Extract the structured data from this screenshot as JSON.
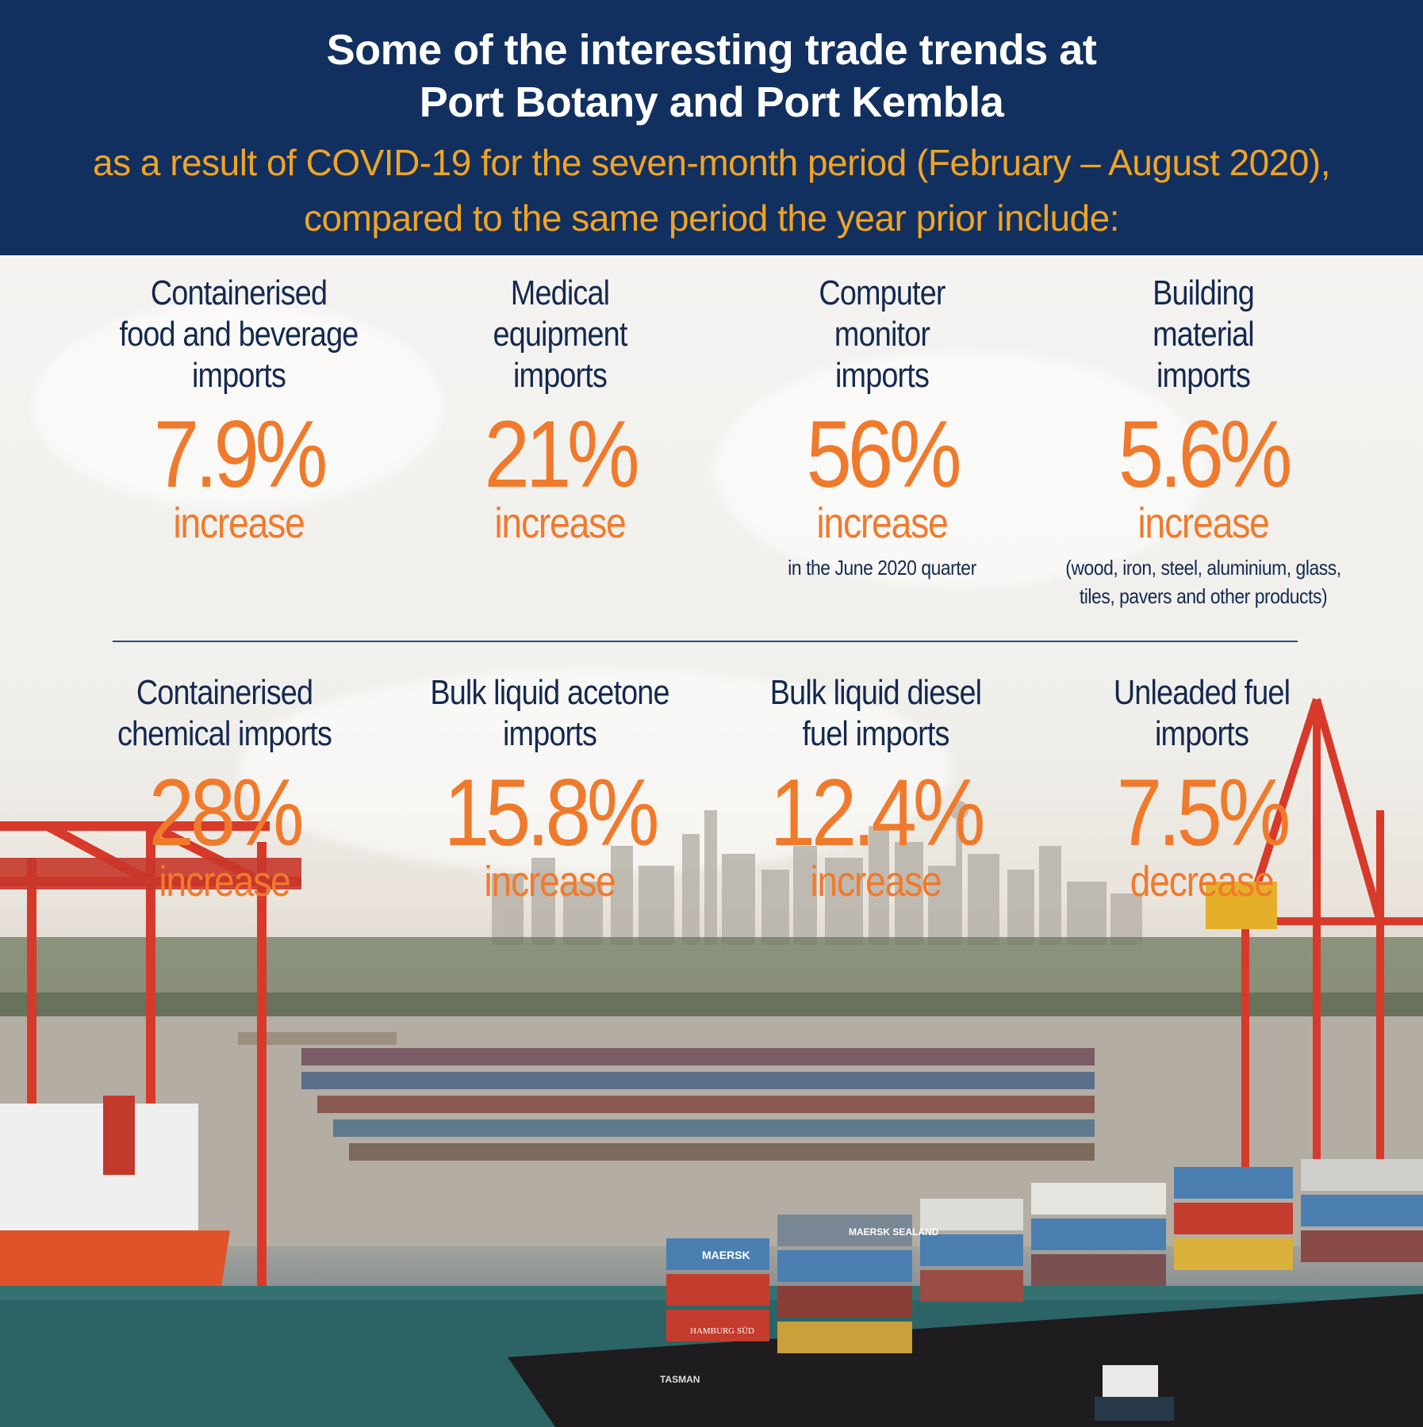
{
  "header": {
    "title_line1": "Some of the interesting trade trends at",
    "title_line2": "Port Botany and Port Kembla",
    "subtitle_line1": "as a result of COVID-19 for the seven-month period (February – August 2020),",
    "subtitle_line2": "compared to the same period the year prior include:"
  },
  "stats_row1": [
    {
      "label_lines": [
        "Containerised",
        "food and beverage",
        "imports"
      ],
      "value": "7.9%",
      "change": "increase",
      "note": []
    },
    {
      "label_lines": [
        "Medical",
        "equipment",
        "imports"
      ],
      "value": "21%",
      "change": "increase",
      "note": []
    },
    {
      "label_lines": [
        "Computer",
        "monitor",
        "imports"
      ],
      "value": "56%",
      "change": "increase",
      "note": [
        "in the June 2020 quarter"
      ]
    },
    {
      "label_lines": [
        "Building",
        "material",
        "imports"
      ],
      "value": "5.6%",
      "change": "increase",
      "note": [
        "(wood, iron, steel, aluminium, glass,",
        "tiles, pavers and other products)"
      ]
    }
  ],
  "stats_row2": [
    {
      "label_lines": [
        "Containerised",
        "chemical imports"
      ],
      "value": "28%",
      "change": "increase"
    },
    {
      "label_lines": [
        "Bulk liquid acetone",
        "imports"
      ],
      "value": "15.8%",
      "change": "increase"
    },
    {
      "label_lines": [
        "Bulk liquid diesel",
        "fuel imports"
      ],
      "value": "12.4%",
      "change": "increase"
    },
    {
      "label_lines": [
        "Unleaded fuel",
        "imports"
      ],
      "value": "7.5%",
      "change": "decrease"
    }
  ],
  "photo": {
    "ship_name": "TASMAN",
    "container_brands": [
      "MAERSK",
      "MAERSK SEALAND",
      "HAMBURG SÜD"
    ]
  },
  "colors": {
    "header_bg": "#12305f",
    "accent_orange": "#f07a2c",
    "subtitle_gold": "#f0a424",
    "label_navy": "#14294f"
  }
}
